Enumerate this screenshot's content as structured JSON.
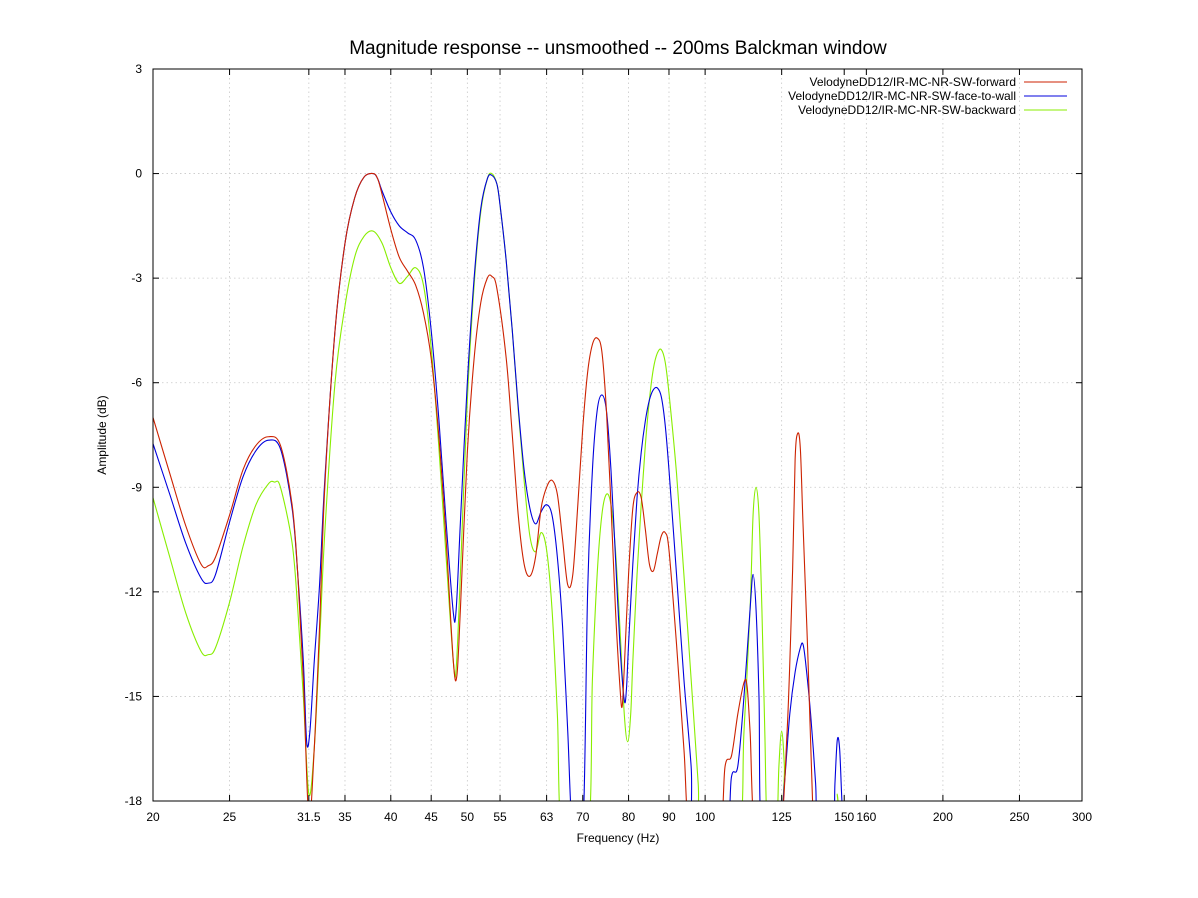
{
  "chart_data": {
    "type": "line",
    "title": "Magnitude response -- unsmoothed -- 200ms Balckman window",
    "xlabel": "Frequency (Hz)",
    "ylabel": "Amplitude (dB)",
    "xscale": "log",
    "xlim": [
      20,
      300
    ],
    "ylim": [
      -18,
      3
    ],
    "xticks": [
      20,
      25,
      31.5,
      35,
      40,
      45,
      50,
      55,
      63,
      70,
      80,
      90,
      100,
      125,
      150,
      160,
      200,
      250,
      300
    ],
    "xtick_labels": [
      "20",
      "25",
      "31.5",
      "35",
      "40",
      "45",
      "50",
      "55",
      "63",
      "70",
      "80",
      "90",
      "100",
      "125",
      "150",
      "160",
      "200",
      "250",
      "300"
    ],
    "yticks": [
      3,
      0,
      -3,
      -6,
      -9,
      -12,
      -15,
      -18
    ],
    "ytick_labels": [
      "3",
      "0",
      "-3",
      "-6",
      "-9",
      "-12",
      "-15",
      "-18"
    ],
    "grid": true,
    "legend_position": "top-right",
    "series": [
      {
        "name": "VelodyneDD12/IR-MC-NR-SW-forward",
        "color": "#cc2200",
        "points": [
          [
            20,
            -7.0
          ],
          [
            21,
            -8.6
          ],
          [
            22,
            -10.1
          ],
          [
            23,
            -11.2
          ],
          [
            23.5,
            -11.25
          ],
          [
            24,
            -11.0
          ],
          [
            25,
            -9.8
          ],
          [
            26,
            -8.5
          ],
          [
            27,
            -7.8
          ],
          [
            28,
            -7.55
          ],
          [
            29,
            -7.8
          ],
          [
            30,
            -9.5
          ],
          [
            30.5,
            -11.5
          ],
          [
            31,
            -14.5
          ],
          [
            31.5,
            -18.5
          ],
          [
            32,
            -16.5
          ],
          [
            32.5,
            -13.0
          ],
          [
            33,
            -9.0
          ],
          [
            34,
            -4.5
          ],
          [
            35,
            -2.0
          ],
          [
            36,
            -0.7
          ],
          [
            37,
            -0.1
          ],
          [
            38,
            0.0
          ],
          [
            38.5,
            -0.15
          ],
          [
            39,
            -0.6
          ],
          [
            40,
            -1.6
          ],
          [
            41,
            -2.4
          ],
          [
            42,
            -2.8
          ],
          [
            43,
            -3.2
          ],
          [
            44,
            -4.0
          ],
          [
            45,
            -5.3
          ],
          [
            46,
            -7.5
          ],
          [
            47,
            -10.5
          ],
          [
            48,
            -14.0
          ],
          [
            48.5,
            -14.4
          ],
          [
            49,
            -12.5
          ],
          [
            50,
            -8.0
          ],
          [
            51,
            -5.3
          ],
          [
            52,
            -3.7
          ],
          [
            53,
            -3.0
          ],
          [
            53.7,
            -2.95
          ],
          [
            54.5,
            -3.3
          ],
          [
            56,
            -5.3
          ],
          [
            57,
            -7.5
          ],
          [
            58,
            -9.8
          ],
          [
            59,
            -11.2
          ],
          [
            60,
            -11.55
          ],
          [
            61,
            -11.0
          ],
          [
            62,
            -9.6
          ],
          [
            63,
            -9.0
          ],
          [
            64,
            -8.8
          ],
          [
            65,
            -9.2
          ],
          [
            66,
            -10.5
          ],
          [
            67,
            -11.8
          ],
          [
            68,
            -11.5
          ],
          [
            69,
            -9.5
          ],
          [
            70,
            -7.3
          ],
          [
            71,
            -5.7
          ],
          [
            72,
            -4.9
          ],
          [
            73,
            -4.72
          ],
          [
            74,
            -5.1
          ],
          [
            75,
            -6.8
          ],
          [
            76,
            -9.5
          ],
          [
            77,
            -12.5
          ],
          [
            78,
            -14.7
          ],
          [
            78.5,
            -15.3
          ],
          [
            79,
            -14.2
          ],
          [
            80,
            -11.5
          ],
          [
            81,
            -9.6
          ],
          [
            82,
            -9.15
          ],
          [
            83,
            -9.3
          ],
          [
            84,
            -10.2
          ],
          [
            85,
            -11.2
          ],
          [
            86,
            -11.4
          ],
          [
            87,
            -10.9
          ],
          [
            88,
            -10.4
          ],
          [
            89,
            -10.3
          ],
          [
            90,
            -10.8
          ],
          [
            92,
            -13.5
          ],
          [
            94,
            -16.5
          ],
          [
            96,
            -19.0
          ],
          [
            104,
            -19.0
          ],
          [
            106,
            -17.0
          ],
          [
            108,
            -16.7
          ],
          [
            110,
            -15.5
          ],
          [
            112,
            -14.6
          ],
          [
            113,
            -14.7
          ],
          [
            114,
            -16.0
          ],
          [
            116,
            -19.0
          ],
          [
            124,
            -19.0
          ],
          [
            127,
            -16.0
          ],
          [
            129,
            -11.5
          ],
          [
            130,
            -8.2
          ],
          [
            131,
            -7.45
          ],
          [
            132,
            -7.9
          ],
          [
            133,
            -10.0
          ],
          [
            135,
            -14.0
          ],
          [
            137,
            -18.5
          ],
          [
            138,
            -19.0
          ]
        ]
      },
      {
        "name": "VelodyneDD12/IR-MC-NR-SW-face-to-wall",
        "color": "#0000dd",
        "points": [
          [
            20,
            -7.75
          ],
          [
            21,
            -9.2
          ],
          [
            22,
            -10.6
          ],
          [
            23,
            -11.6
          ],
          [
            23.5,
            -11.75
          ],
          [
            24,
            -11.5
          ],
          [
            25,
            -10.0
          ],
          [
            26,
            -8.7
          ],
          [
            27,
            -7.95
          ],
          [
            28,
            -7.65
          ],
          [
            29,
            -7.9
          ],
          [
            30,
            -9.6
          ],
          [
            30.5,
            -11.5
          ],
          [
            31,
            -14.0
          ],
          [
            31.3,
            -16.3
          ],
          [
            31.6,
            -16.0
          ],
          [
            32,
            -14.0
          ],
          [
            32.5,
            -11.8
          ],
          [
            33,
            -8.8
          ],
          [
            34,
            -4.5
          ],
          [
            35,
            -2.0
          ],
          [
            36,
            -0.7
          ],
          [
            37,
            -0.1
          ],
          [
            38,
            0.0
          ],
          [
            38.5,
            -0.15
          ],
          [
            39,
            -0.5
          ],
          [
            40,
            -1.1
          ],
          [
            41,
            -1.5
          ],
          [
            42,
            -1.7
          ],
          [
            43,
            -1.9
          ],
          [
            44,
            -2.7
          ],
          [
            45,
            -4.5
          ],
          [
            46,
            -7.0
          ],
          [
            47,
            -10.0
          ],
          [
            48,
            -12.6
          ],
          [
            48.4,
            -12.5
          ],
          [
            49,
            -10.0
          ],
          [
            50,
            -6.0
          ],
          [
            51,
            -3.0
          ],
          [
            52,
            -1.0
          ],
          [
            53,
            -0.15
          ],
          [
            53.7,
            -0.05
          ],
          [
            54.5,
            -0.3
          ],
          [
            55,
            -0.9
          ],
          [
            56,
            -2.5
          ],
          [
            57,
            -4.5
          ],
          [
            58,
            -6.7
          ],
          [
            59,
            -8.5
          ],
          [
            60,
            -9.6
          ],
          [
            61,
            -10.05
          ],
          [
            62,
            -9.7
          ],
          [
            63,
            -9.5
          ],
          [
            64,
            -9.8
          ],
          [
            65,
            -11.0
          ],
          [
            66,
            -13.0
          ],
          [
            67,
            -16.0
          ],
          [
            68,
            -19.0
          ],
          [
            70,
            -19.0
          ],
          [
            71,
            -12.0
          ],
          [
            72,
            -8.5
          ],
          [
            73,
            -6.8
          ],
          [
            74,
            -6.35
          ],
          [
            75,
            -6.8
          ],
          [
            76,
            -8.5
          ],
          [
            77,
            -11.0
          ],
          [
            78,
            -13.5
          ],
          [
            79,
            -15.1
          ],
          [
            79.5,
            -14.8
          ],
          [
            80,
            -13.5
          ],
          [
            81,
            -11.2
          ],
          [
            82,
            -9.3
          ],
          [
            83,
            -8.0
          ],
          [
            84,
            -7.1
          ],
          [
            85,
            -6.5
          ],
          [
            86,
            -6.2
          ],
          [
            87,
            -6.15
          ],
          [
            88,
            -6.4
          ],
          [
            89,
            -7.2
          ],
          [
            90,
            -8.5
          ],
          [
            92,
            -11.5
          ],
          [
            94,
            -14.5
          ],
          [
            96,
            -17.0
          ],
          [
            97,
            -19.0
          ],
          [
            106,
            -19.0
          ],
          [
            108,
            -17.3
          ],
          [
            110,
            -17.0
          ],
          [
            112,
            -15.0
          ],
          [
            114,
            -12.5
          ],
          [
            115,
            -11.5
          ],
          [
            116,
            -12.5
          ],
          [
            117,
            -15.0
          ],
          [
            118,
            -19.0
          ],
          [
            124,
            -19.0
          ],
          [
            126,
            -17.5
          ],
          [
            128,
            -15.5
          ],
          [
            130,
            -14.3
          ],
          [
            132,
            -13.6
          ],
          [
            133,
            -13.5
          ],
          [
            134,
            -14.0
          ],
          [
            136,
            -15.5
          ],
          [
            138,
            -17.5
          ],
          [
            139,
            -19.0
          ],
          [
            145,
            -19.0
          ],
          [
            146,
            -17.5
          ],
          [
            147,
            -16.25
          ],
          [
            148,
            -16.5
          ],
          [
            149,
            -18.0
          ],
          [
            150,
            -19.0
          ]
        ]
      },
      {
        "name": "VelodyneDD12/IR-MC-NR-SW-backward",
        "color": "#88ee00",
        "points": [
          [
            20,
            -9.3
          ],
          [
            21,
            -11.0
          ],
          [
            22,
            -12.6
          ],
          [
            23,
            -13.7
          ],
          [
            23.5,
            -13.8
          ],
          [
            24,
            -13.6
          ],
          [
            25,
            -12.3
          ],
          [
            26,
            -10.7
          ],
          [
            27,
            -9.5
          ],
          [
            28,
            -8.9
          ],
          [
            28.5,
            -8.85
          ],
          [
            29,
            -9.0
          ],
          [
            30,
            -10.6
          ],
          [
            30.5,
            -12.5
          ],
          [
            31,
            -15.0
          ],
          [
            31.5,
            -17.8
          ],
          [
            32,
            -16.5
          ],
          [
            32.5,
            -13.5
          ],
          [
            33,
            -10.3
          ],
          [
            34,
            -6.0
          ],
          [
            35,
            -3.8
          ],
          [
            36,
            -2.4
          ],
          [
            37,
            -1.8
          ],
          [
            38,
            -1.65
          ],
          [
            39,
            -2.0
          ],
          [
            40,
            -2.7
          ],
          [
            41,
            -3.15
          ],
          [
            42,
            -2.95
          ],
          [
            43,
            -2.7
          ],
          [
            44,
            -3.2
          ],
          [
            45,
            -5.0
          ],
          [
            46,
            -7.8
          ],
          [
            47,
            -11.0
          ],
          [
            48,
            -14.0
          ],
          [
            48.4,
            -14.2
          ],
          [
            49,
            -11.5
          ],
          [
            50,
            -6.5
          ],
          [
            51,
            -3.2
          ],
          [
            52,
            -1.1
          ],
          [
            53,
            -0.15
          ],
          [
            53.7,
            0.0
          ],
          [
            54.5,
            -0.3
          ],
          [
            55,
            -0.9
          ],
          [
            56,
            -2.5
          ],
          [
            57,
            -4.5
          ],
          [
            58,
            -6.8
          ],
          [
            59,
            -8.8
          ],
          [
            60,
            -10.4
          ],
          [
            61,
            -10.85
          ],
          [
            62,
            -10.3
          ],
          [
            63,
            -10.8
          ],
          [
            64,
            -12.5
          ],
          [
            65,
            -15.5
          ],
          [
            66,
            -19.0
          ],
          [
            71,
            -19.0
          ],
          [
            72,
            -14.5
          ],
          [
            73,
            -11.5
          ],
          [
            74,
            -9.8
          ],
          [
            75,
            -9.2
          ],
          [
            76,
            -9.5
          ],
          [
            77,
            -10.8
          ],
          [
            78,
            -13.0
          ],
          [
            79,
            -15.5
          ],
          [
            79.8,
            -16.3
          ],
          [
            80.5,
            -15.5
          ],
          [
            81,
            -14.0
          ],
          [
            82,
            -11.5
          ],
          [
            83,
            -9.5
          ],
          [
            84,
            -7.8
          ],
          [
            85,
            -6.5
          ],
          [
            86,
            -5.6
          ],
          [
            87,
            -5.15
          ],
          [
            88,
            -5.05
          ],
          [
            89,
            -5.4
          ],
          [
            90,
            -6.3
          ],
          [
            92,
            -8.6
          ],
          [
            94,
            -11.5
          ],
          [
            96,
            -14.5
          ],
          [
            98,
            -17.5
          ],
          [
            99,
            -19.0
          ],
          [
            110,
            -19.0
          ],
          [
            112,
            -16.0
          ],
          [
            114,
            -12.5
          ],
          [
            115,
            -9.8
          ],
          [
            116,
            -9.0
          ],
          [
            117,
            -9.8
          ],
          [
            118,
            -12.5
          ],
          [
            119,
            -16.0
          ],
          [
            120,
            -19.0
          ],
          [
            123,
            -19.0
          ],
          [
            124,
            -17.0
          ],
          [
            125,
            -16.0
          ],
          [
            126,
            -17.0
          ],
          [
            127,
            -19.0
          ],
          [
            146,
            -19.0
          ],
          [
            147,
            -17.8
          ],
          [
            148,
            -19.0
          ]
        ]
      }
    ]
  }
}
